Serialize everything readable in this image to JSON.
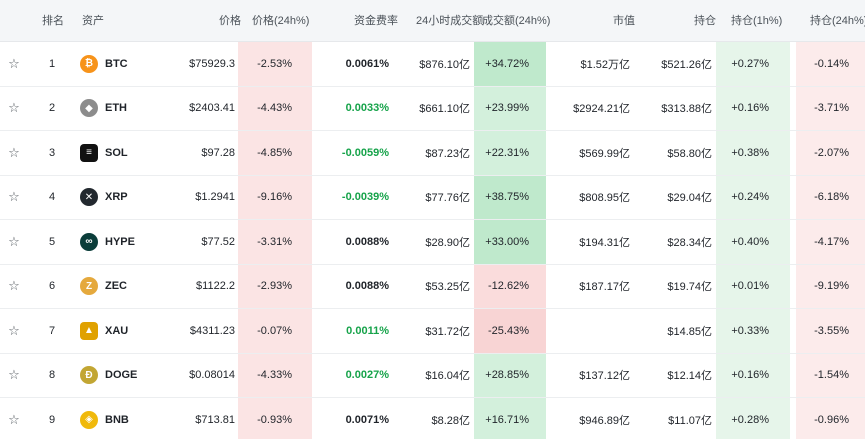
{
  "headers": {
    "rank": "排名",
    "asset": "资产",
    "price": "价格",
    "price_change": "价格(24h%)",
    "funding_rate": "资金费率",
    "volume_24h": "24小时成交额",
    "volume_change": "成交额(24h%)",
    "market_cap": "市值",
    "open_interest": "持仓",
    "oi_change_1h": "持仓(1h%)",
    "oi_change_24h": "持仓(24h%)"
  },
  "star_glyph": "☆",
  "rows": [
    {
      "rank": "1",
      "symbol": "BTC",
      "logo_glyph": "₿",
      "logo_color": "#f7931a",
      "price": "$75929.3",
      "price_change": "-2.53%",
      "funding_rate": "0.0061%",
      "funding_positive_green": false,
      "volume": "$876.10亿",
      "volume_change": "+34.72%",
      "market_cap": "$1.52万亿",
      "open_interest": "$521.26亿",
      "oi_1h": "+0.27%",
      "oi_24h": "-0.14%"
    },
    {
      "rank": "2",
      "symbol": "ETH",
      "logo_glyph": "◆",
      "logo_color": "#8c8c8c",
      "price": "$2403.41",
      "price_change": "-4.43%",
      "funding_rate": "0.0033%",
      "funding_positive_green": true,
      "volume": "$661.10亿",
      "volume_change": "+23.99%",
      "market_cap": "$2924.21亿",
      "open_interest": "$313.88亿",
      "oi_1h": "+0.16%",
      "oi_24h": "-3.71%"
    },
    {
      "rank": "3",
      "symbol": "SOL",
      "logo_glyph": "≡",
      "logo_color": "#111111",
      "price": "$97.28",
      "price_change": "-4.85%",
      "funding_rate": "-0.0059%",
      "funding_positive_green": true,
      "volume": "$87.23亿",
      "volume_change": "+22.31%",
      "market_cap": "$569.99亿",
      "open_interest": "$58.80亿",
      "oi_1h": "+0.38%",
      "oi_24h": "-2.07%"
    },
    {
      "rank": "4",
      "symbol": "XRP",
      "logo_glyph": "✕",
      "logo_color": "#23292f",
      "price": "$1.2941",
      "price_change": "-9.16%",
      "funding_rate": "-0.0039%",
      "funding_positive_green": true,
      "volume": "$77.76亿",
      "volume_change": "+38.75%",
      "market_cap": "$808.95亿",
      "open_interest": "$29.04亿",
      "oi_1h": "+0.24%",
      "oi_24h": "-6.18%"
    },
    {
      "rank": "5",
      "symbol": "HYPE",
      "logo_glyph": "∞",
      "logo_color": "#0b3d3a",
      "price": "$77.52",
      "price_change": "-3.31%",
      "funding_rate": "0.0088%",
      "funding_positive_green": false,
      "volume": "$28.90亿",
      "volume_change": "+33.00%",
      "market_cap": "$194.31亿",
      "open_interest": "$28.34亿",
      "oi_1h": "+0.40%",
      "oi_24h": "-4.17%"
    },
    {
      "rank": "6",
      "symbol": "ZEC",
      "logo_glyph": "Z",
      "logo_color": "#e5a93d",
      "price": "$1122.2",
      "price_change": "-2.93%",
      "funding_rate": "0.0088%",
      "funding_positive_green": false,
      "volume": "$53.25亿",
      "volume_change": "-12.62%",
      "market_cap": "$187.17亿",
      "open_interest": "$19.74亿",
      "oi_1h": "+0.01%",
      "oi_24h": "-9.19%"
    },
    {
      "rank": "7",
      "symbol": "XAU",
      "logo_glyph": "▲",
      "logo_color": "#e0a100",
      "price": "$4311.23",
      "price_change": "-0.07%",
      "funding_rate": "0.0011%",
      "funding_positive_green": true,
      "volume": "$31.72亿",
      "volume_change": "-25.43%",
      "market_cap": "",
      "open_interest": "$14.85亿",
      "oi_1h": "+0.33%",
      "oi_24h": "-3.55%"
    },
    {
      "rank": "8",
      "symbol": "DOGE",
      "logo_glyph": "Ð",
      "logo_color": "#c2a633",
      "price": "$0.08014",
      "price_change": "-4.33%",
      "funding_rate": "0.0027%",
      "funding_positive_green": true,
      "volume": "$16.04亿",
      "volume_change": "+28.85%",
      "market_cap": "$137.12亿",
      "open_interest": "$12.14亿",
      "oi_1h": "+0.16%",
      "oi_24h": "-1.54%"
    },
    {
      "rank": "9",
      "symbol": "BNB",
      "logo_glyph": "◈",
      "logo_color": "#f0b90b",
      "price": "$713.81",
      "price_change": "-0.93%",
      "funding_rate": "0.0071%",
      "funding_positive_green": false,
      "volume": "$8.28亿",
      "volume_change": "+16.71%",
      "market_cap": "$946.89亿",
      "open_interest": "$11.07亿",
      "oi_1h": "+0.28%",
      "oi_24h": "-0.96%"
    }
  ]
}
